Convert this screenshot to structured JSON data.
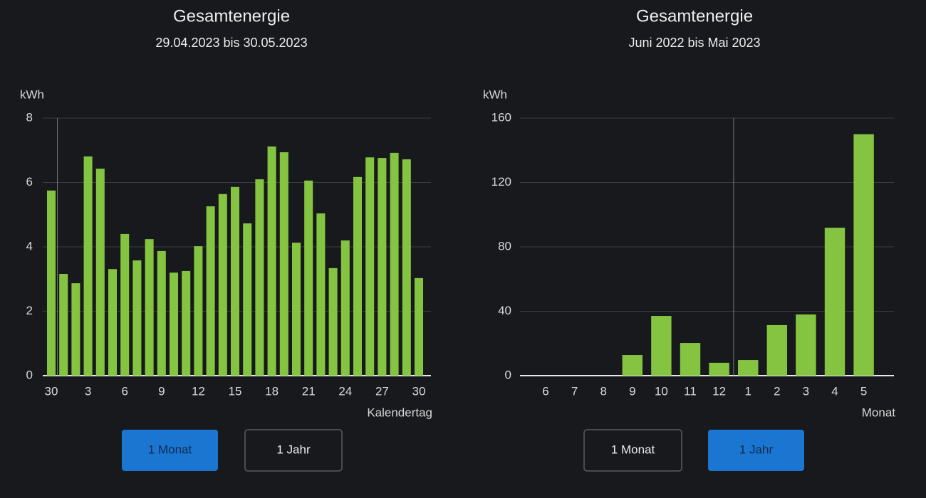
{
  "chart_data": [
    {
      "type": "bar",
      "title": "Gesamtenergie",
      "subtitle": "29.04.2023 bis 30.05.2023",
      "y_label": "kWh",
      "x_label": "Kalendertag",
      "categories": [
        "30",
        null,
        null,
        "3",
        null,
        null,
        "6",
        null,
        null,
        "9",
        null,
        null,
        "12",
        null,
        null,
        "15",
        null,
        null,
        "18",
        null,
        null,
        "21",
        null,
        null,
        "24",
        null,
        null,
        "27",
        null,
        null,
        "30"
      ],
      "values": [
        5.75,
        3.16,
        2.87,
        6.81,
        6.43,
        3.31,
        4.4,
        3.58,
        4.24,
        3.87,
        3.2,
        3.25,
        4.02,
        5.26,
        5.64,
        5.86,
        4.73,
        6.1,
        7.12,
        6.94,
        4.13,
        6.06,
        5.04,
        3.34,
        4.2,
        6.17,
        6.78,
        6.76,
        6.92,
        6.72,
        3.03
      ],
      "color": "#84c441",
      "ylim": [
        0,
        8
      ],
      "yticks": [
        0,
        2,
        4,
        6,
        8
      ],
      "grid": true,
      "divider_after": 0
    },
    {
      "type": "bar",
      "title": "Gesamtenergie",
      "subtitle": "Juni 2022 bis Mai 2023",
      "y_label": "kWh",
      "x_label": "Monat",
      "categories": [
        "6",
        "7",
        "8",
        "9",
        "10",
        "11",
        "12",
        "1",
        "2",
        "3",
        "4",
        "5"
      ],
      "values": [
        0,
        0,
        0,
        12.8,
        37.1,
        20.3,
        8.0,
        9.7,
        31.4,
        38.0,
        91.9,
        150
      ],
      "color": "#84c441",
      "ylim": [
        0,
        160
      ],
      "yticks": [
        0,
        40,
        80,
        120,
        160
      ],
      "grid": true,
      "divider_after": 6
    }
  ],
  "controls": [
    {
      "labels": [
        "1 Monat",
        "1 Jahr"
      ],
      "active": 0
    },
    {
      "labels": [
        "1 Monat",
        "1 Jahr"
      ],
      "active": 1
    }
  ]
}
